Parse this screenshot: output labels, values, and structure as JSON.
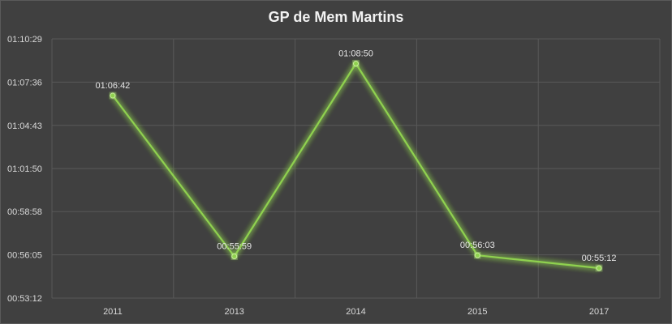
{
  "chart_data": {
    "type": "line",
    "title": "GP de Mem Martins",
    "categories": [
      "2011",
      "2013",
      "2014",
      "2015",
      "2017"
    ],
    "series": [
      {
        "values": [
          "01:06:42",
          "00:55:59",
          "01:08:50",
          "00:56:03",
          "00:55:12"
        ],
        "seconds": [
          4002,
          3359,
          4130,
          3363,
          3312
        ],
        "color": "#8fd14f"
      }
    ],
    "y_ticks": [
      "00:53:12",
      "00:56:05",
      "00:58:58",
      "01:01:50",
      "01:04:43",
      "01:07:36",
      "01:10:29"
    ],
    "ylim": [
      "00:53:12",
      "01:10:29"
    ],
    "data_labels": true,
    "grid": true,
    "legend": "none",
    "background_color": "#404040",
    "grid_color": "#595959"
  }
}
